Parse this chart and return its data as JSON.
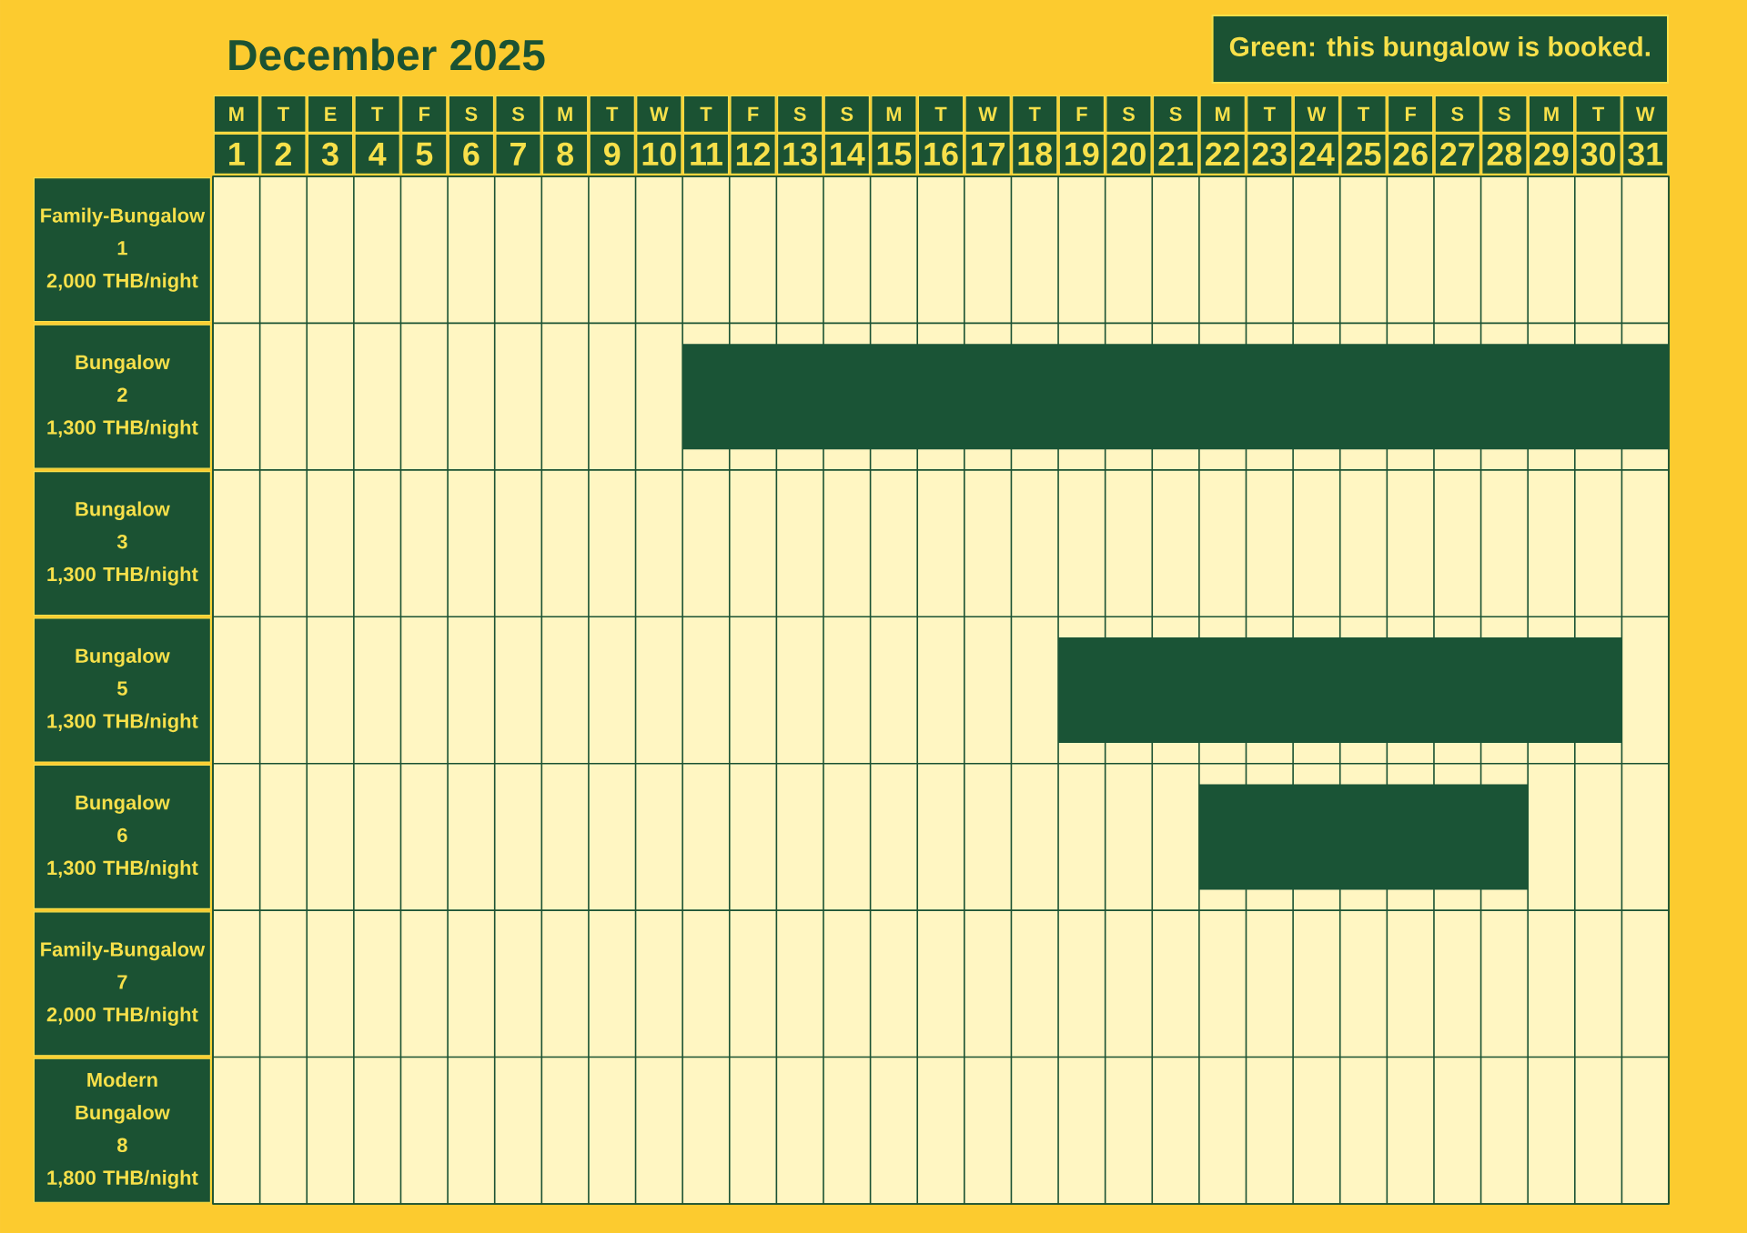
{
  "chart_data": {
    "type": "bar",
    "orientation": "horizontal",
    "title": "December 2025",
    "annotations": [
      "Green: this bungalow is booked.",
      "M",
      "T",
      "E",
      "T",
      "F",
      "S",
      "S",
      "M",
      "T",
      "W",
      "T",
      "F",
      "S",
      "S",
      "M",
      "T",
      "W",
      "T",
      "F",
      "S",
      "S",
      "M",
      "T",
      "W",
      "T",
      "F",
      "S",
      "S",
      "M",
      "T",
      "W"
    ],
    "categories": [
      "Family-Bungalow\n1\n2,000 THB/night",
      "Bungalow\n2\n1,300 THB/night",
      "Bungalow\n3\n1,300 THB/night",
      "Bungalow\n5\n1,300 THB/night",
      "Bungalow\n6\n1,300 THB/night",
      "Family-Bungalow\n7\n2,000 THB/night",
      "Modern Bungalow\n8\n1,800 THB/night"
    ],
    "series": [
      {
        "color": "#1a5436",
        "base": [
          null,
          10.5,
          null,
          18.5,
          21.5,
          null,
          null
        ],
        "values": [
          null,
          21,
          null,
          12,
          7,
          null,
          null
        ]
      }
    ],
    "xlim": [
      0.5,
      31.5
    ],
    "xticks": [
      1,
      2,
      3,
      4,
      5,
      6,
      7,
      8,
      9,
      10,
      11,
      12,
      13,
      14,
      15,
      16,
      17,
      18,
      19,
      20,
      21,
      22,
      23,
      24,
      25,
      26,
      27,
      28,
      29,
      30,
      31
    ],
    "grid": true
  }
}
